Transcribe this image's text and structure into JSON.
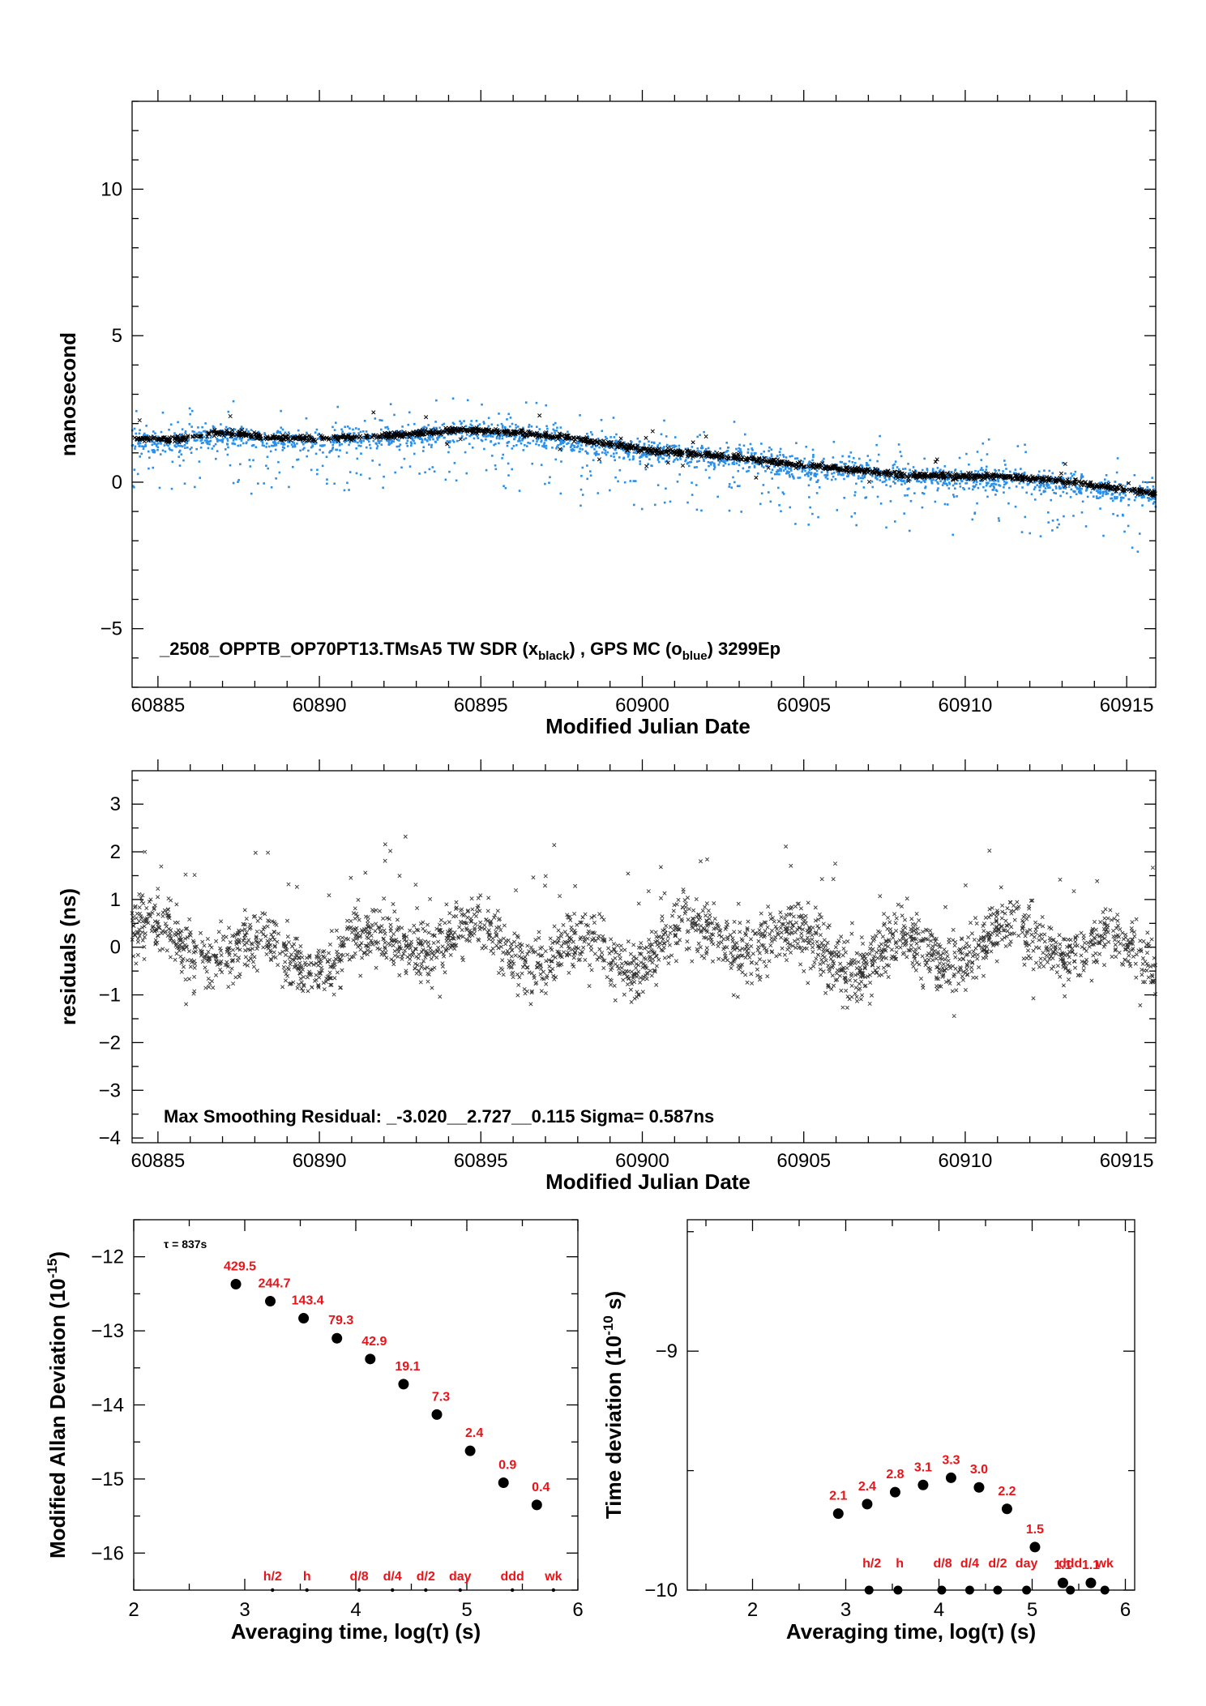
{
  "chart_data": [
    {
      "type": "scatter",
      "xlabel": "Modified Julian Date",
      "ylabel": "nanosecond",
      "xlim": [
        60884.2,
        60915.9
      ],
      "ylim": [
        -7,
        13
      ],
      "xticks": [
        60885,
        60890,
        60895,
        60900,
        60905,
        60910,
        60915
      ],
      "yticks": [
        -5,
        0,
        5,
        10
      ],
      "annotation": {
        "prefix": "_2508_OPPTB_OP70PT13.TMsA5     TW SDR (x",
        "sub1": "black",
        "mid": ") ,  GPS MC (o",
        "sub2": "blue",
        "suffix": ")  3299Ep"
      },
      "series": [
        {
          "marker": "x",
          "color": "#000000",
          "trend": [
            [
              60884.2,
              1.5
            ],
            [
              60885.5,
              1.45
            ],
            [
              60887,
              1.7
            ],
            [
              60888.5,
              1.5
            ],
            [
              60890,
              1.5
            ],
            [
              60891.5,
              1.55
            ],
            [
              60893,
              1.65
            ],
            [
              60894.5,
              1.8
            ],
            [
              60896,
              1.7
            ],
            [
              60897.5,
              1.55
            ],
            [
              60899,
              1.3
            ],
            [
              60900.5,
              1.05
            ],
            [
              60902,
              0.95
            ],
            [
              60903.5,
              0.8
            ],
            [
              60905,
              0.55
            ],
            [
              60906.5,
              0.45
            ],
            [
              60908,
              0.25
            ],
            [
              60909.5,
              0.2
            ],
            [
              60911,
              0.2
            ],
            [
              60912.5,
              0.1
            ],
            [
              60914,
              -0.1
            ],
            [
              60915.9,
              -0.4
            ]
          ]
        },
        {
          "marker": "dot",
          "color": "#2a8fe8",
          "trend": [
            [
              60884.2,
              1.4
            ],
            [
              60885.5,
              1.3
            ],
            [
              60887,
              1.6
            ],
            [
              60888.5,
              1.45
            ],
            [
              60890,
              1.4
            ],
            [
              60891.5,
              1.5
            ],
            [
              60893,
              1.6
            ],
            [
              60894.5,
              1.75
            ],
            [
              60896,
              1.65
            ],
            [
              60897.5,
              1.45
            ],
            [
              60899,
              1.2
            ],
            [
              60900.5,
              1.0
            ],
            [
              60902,
              0.85
            ],
            [
              60903.5,
              0.75
            ],
            [
              60905,
              0.45
            ],
            [
              60906.5,
              0.4
            ],
            [
              60908,
              0.2
            ],
            [
              60909.5,
              0.1
            ],
            [
              60911,
              0.1
            ],
            [
              60912.5,
              0.0
            ],
            [
              60914,
              -0.2
            ],
            [
              60915.9,
              -0.5
            ]
          ]
        }
      ]
    },
    {
      "type": "scatter",
      "xlabel": "Modified Julian Date",
      "ylabel": "residuals (ns)",
      "xlim": [
        60884.2,
        60915.9
      ],
      "ylim": [
        -4.1,
        3.7
      ],
      "xticks": [
        60885,
        60890,
        60895,
        60900,
        60905,
        60910,
        60915
      ],
      "yticks": [
        -4,
        -3,
        -2,
        -1,
        0,
        1,
        2,
        3
      ],
      "annotation": "Max Smoothing Residual: _-3.020__2.727__0.115  Sigma= 0.587ns",
      "sigma": 0.587,
      "min": -3.02,
      "max": 2.727,
      "series": [
        {
          "marker": "x",
          "color": "#000000"
        }
      ]
    },
    {
      "type": "scatter",
      "xlabel": "Averaging time, log(τ) (s)",
      "ylabel_main": "Modified Allan Deviation (10",
      "ylabel_sup": "-15",
      "ylabel_end": ")",
      "xlim": [
        2,
        6
      ],
      "ylim": [
        -16.5,
        -11.5
      ],
      "xticks": [
        2,
        3,
        4,
        5,
        6
      ],
      "yticks": [
        -16,
        -15,
        -14,
        -13,
        -12
      ],
      "tau_note": "τ = 837s",
      "points": [
        {
          "x": 2.92,
          "y": -12.37,
          "label": "429.5"
        },
        {
          "x": 3.23,
          "y": -12.6,
          "label": "244.7"
        },
        {
          "x": 3.53,
          "y": -12.83,
          "label": "143.4"
        },
        {
          "x": 3.83,
          "y": -13.1,
          "label": "79.3"
        },
        {
          "x": 4.13,
          "y": -13.38,
          "label": "42.9"
        },
        {
          "x": 4.43,
          "y": -13.72,
          "label": "19.1"
        },
        {
          "x": 4.73,
          "y": -14.13,
          "label": "7.3"
        },
        {
          "x": 5.03,
          "y": -14.62,
          "label": "2.4"
        },
        {
          "x": 5.33,
          "y": -15.05,
          "label": "0.9"
        },
        {
          "x": 5.63,
          "y": -15.35,
          "label": "0.4"
        }
      ],
      "markers": [
        {
          "x": 3.25,
          "label": "h/2"
        },
        {
          "x": 3.56,
          "label": "h"
        },
        {
          "x": 4.03,
          "label": "d/8"
        },
        {
          "x": 4.33,
          "label": "d/4"
        },
        {
          "x": 4.63,
          "label": "d/2"
        },
        {
          "x": 4.94,
          "label": "day"
        },
        {
          "x": 5.41,
          "label": "ddd"
        },
        {
          "x": 5.78,
          "label": "wk"
        }
      ]
    },
    {
      "type": "scatter",
      "xlabel": "Averaging time, log(τ) (s)",
      "ylabel_main": "Time deviation (10",
      "ylabel_sup": "-10",
      "ylabel_end": " s)",
      "xlim": [
        1.3,
        6.1
      ],
      "ylim": [
        -10,
        -8.45
      ],
      "xticks": [
        2,
        3,
        4,
        5,
        6
      ],
      "yticks": [
        -10,
        -9
      ],
      "points": [
        {
          "x": 2.92,
          "y": -9.68,
          "label": "2.1"
        },
        {
          "x": 3.23,
          "y": -9.64,
          "label": "2.4"
        },
        {
          "x": 3.53,
          "y": -9.59,
          "label": "2.8"
        },
        {
          "x": 3.83,
          "y": -9.56,
          "label": "3.1"
        },
        {
          "x": 4.13,
          "y": -9.53,
          "label": "3.3"
        },
        {
          "x": 4.43,
          "y": -9.57,
          "label": "3.0"
        },
        {
          "x": 4.73,
          "y": -9.66,
          "label": "2.2"
        },
        {
          "x": 5.03,
          "y": -9.82,
          "label": "1.5"
        },
        {
          "x": 5.33,
          "y": -9.97,
          "label": "1.1"
        },
        {
          "x": 5.63,
          "y": -9.97,
          "label": "1.1"
        }
      ],
      "bottom_points": [
        3.25,
        3.56,
        4.03,
        4.33,
        4.63,
        4.94,
        5.41,
        5.78
      ],
      "markers": [
        {
          "x": 3.28,
          "label": "h/2"
        },
        {
          "x": 3.58,
          "label": "h"
        },
        {
          "x": 4.04,
          "label": "d/8"
        },
        {
          "x": 4.33,
          "label": "d/4"
        },
        {
          "x": 4.63,
          "label": "d/2"
        },
        {
          "x": 4.94,
          "label": "day"
        },
        {
          "x": 5.41,
          "label": "ddd"
        },
        {
          "x": 5.78,
          "label": "wk"
        }
      ]
    }
  ]
}
